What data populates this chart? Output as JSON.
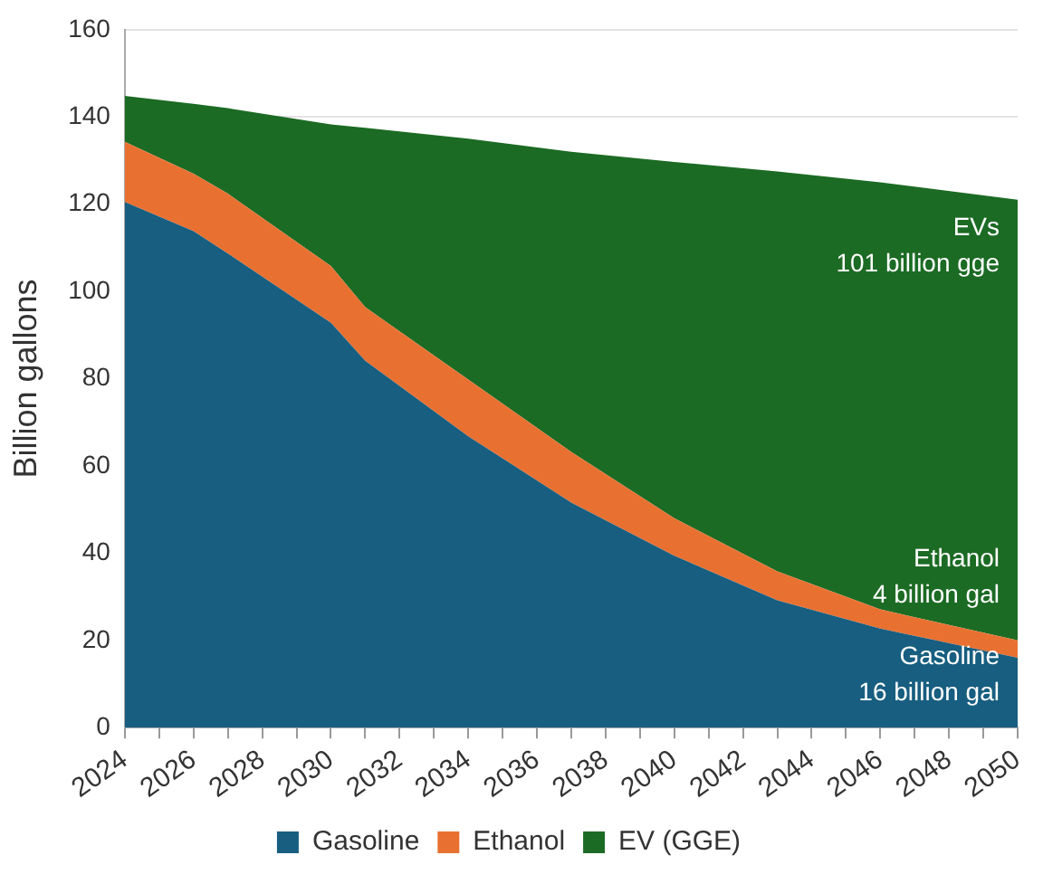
{
  "chart_data": {
    "type": "area",
    "ylabel": "Billion gallons",
    "stacked": true,
    "x": [
      2024,
      2026,
      2027,
      2030,
      2031,
      2034,
      2037,
      2040,
      2043,
      2046,
      2050
    ],
    "series": [
      {
        "name": "Gasoline",
        "color": "#175e80",
        "values": [
          120.5,
          113.8,
          108.7,
          92.8,
          84.1,
          66.8,
          51.6,
          39.4,
          29.2,
          22.7,
          16
        ]
      },
      {
        "name": "Ethanol",
        "color": "#e87132",
        "values": [
          13.8,
          13.2,
          13.7,
          13,
          12.3,
          13,
          11.6,
          8.6,
          6.6,
          4.4,
          4
        ]
      },
      {
        "name": "EV (GGE)",
        "color": "#1c6b24",
        "values": [
          10.5,
          16,
          19.6,
          32.5,
          41.1,
          55.2,
          68.8,
          81.7,
          91.7,
          97.9,
          101
        ]
      }
    ],
    "xlim": [
      2024,
      2050
    ],
    "xticks": [
      2024,
      {
        "value": 2025,
        "label": null
      },
      2026,
      {
        "value": 2027,
        "label": null
      },
      2028,
      {
        "value": 2029,
        "label": null
      },
      2030,
      {
        "value": 2031,
        "label": null
      },
      2032,
      {
        "value": 2033,
        "label": null
      },
      2034,
      {
        "value": 2035,
        "label": null
      },
      2036,
      {
        "value": 2037,
        "label": null
      },
      2038,
      {
        "value": 2039,
        "label": null
      },
      2040,
      {
        "value": 2041,
        "label": null
      },
      2042,
      {
        "value": 2043,
        "label": null
      },
      2044,
      {
        "value": 2045,
        "label": null
      },
      2046,
      {
        "value": 2047,
        "label": null
      },
      2048,
      {
        "value": 2049,
        "label": null
      },
      2050
    ],
    "ylim": [
      0,
      160
    ],
    "yticks": [
      0,
      20,
      40,
      60,
      80,
      100,
      120,
      140,
      160
    ],
    "grid": "y",
    "legend": "bottom",
    "annotations": [
      "EVs\n101 billion gge",
      "Ethanol\n4 billion gal",
      "Gasoline\n16 billion gal"
    ]
  }
}
